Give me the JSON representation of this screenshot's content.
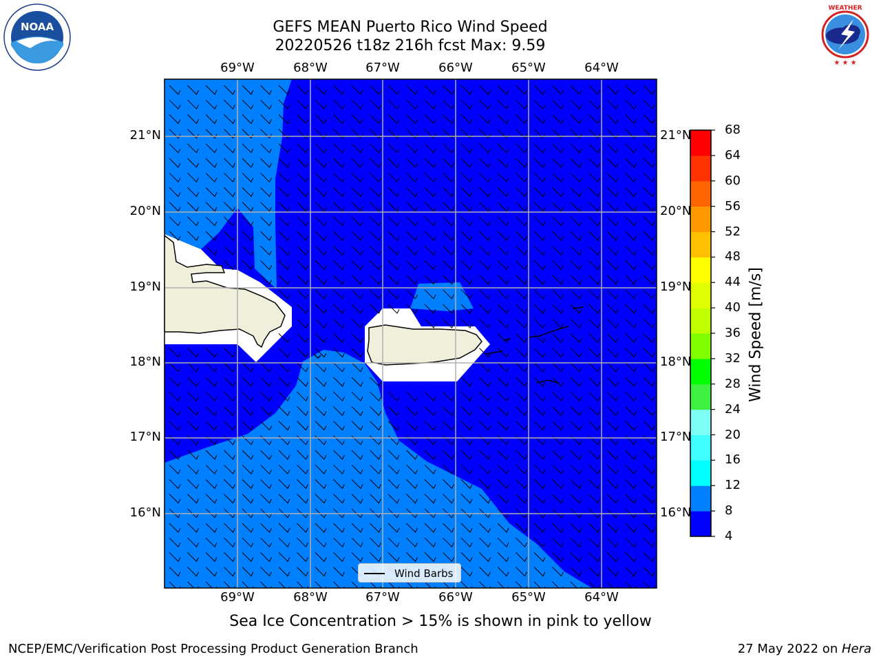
{
  "header": {
    "title_line1": "GEFS MEAN Puerto Rico Wind Speed",
    "title_line2": "20220526 t18z 216h fcst   Max: 9.59"
  },
  "logos": {
    "noaa_text": "NOAA",
    "noaa_ring_text": "NATIONAL OCEANIC AND ATMOSPHERIC ADMINISTRATION · U.S. DEPARTMENT OF COMMERCE",
    "nws_ring_text": "NATIONAL WEATHER SERVICE"
  },
  "map": {
    "lon_labels": [
      "69°W",
      "68°W",
      "67°W",
      "66°W",
      "65°W",
      "64°W"
    ],
    "lat_labels": [
      "21°N",
      "20°N",
      "19°N",
      "18°N",
      "17°N",
      "16°N"
    ],
    "legend_label": "Wind Barbs"
  },
  "colorbar": {
    "label": "Wind Speed [m/s]",
    "ticks": [
      "68",
      "64",
      "60",
      "56",
      "52",
      "48",
      "44",
      "40",
      "36",
      "32",
      "28",
      "24",
      "20",
      "16",
      "12",
      "8",
      "4"
    ],
    "colors": [
      "#0000ff",
      "#0080ff",
      "#00ffff",
      "#40ffff",
      "#80fff8",
      "#40f040",
      "#00ff00",
      "#80ff00",
      "#c0ff00",
      "#e0ff00",
      "#ffff00",
      "#ffc000",
      "#ff9900",
      "#ff6600",
      "#ff3300",
      "#ff0000"
    ]
  },
  "caption": "Sea Ice Concentration > 15% is shown in pink to yellow",
  "footer": {
    "left": "NCEP/EMC/Verification Post Processing Product Generation Branch",
    "right_prefix": "27 May 2022 on ",
    "right_italic": "Hera"
  }
}
